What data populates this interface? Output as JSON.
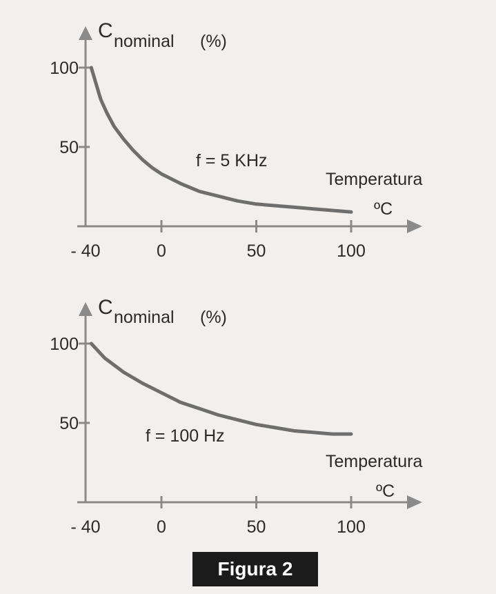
{
  "caption": "Figura 2",
  "colors": {
    "axis": "#8a8a8a",
    "curve": "#6e6e6e",
    "text": "#2a2a2a",
    "caption_bg": "#1b1b1b",
    "background": "#f1f0ee"
  },
  "chart_data": [
    {
      "type": "line",
      "title": "",
      "ylabel_main": "C",
      "ylabel_sub": "nominal",
      "ylabel_unit": "(%)",
      "xlabel_line1": "Temperatura",
      "xlabel_line2": "ºC",
      "annotation": "f = 5 KHz",
      "xlim": [
        -40,
        120
      ],
      "ylim": [
        0,
        115
      ],
      "xticks": [
        -40,
        0,
        50,
        100
      ],
      "xtick_labels": [
        "- 40",
        "0",
        "50",
        "100"
      ],
      "yticks": [
        100,
        50
      ],
      "ytick_labels": [
        "100",
        "50"
      ],
      "grid": false,
      "series": [
        {
          "x": [
            -37,
            -34,
            -32,
            -29,
            -25,
            -20,
            -15,
            -10,
            -5,
            0,
            10,
            20,
            30,
            40,
            50,
            60,
            70,
            80,
            90,
            100
          ],
          "y": [
            100,
            88,
            80,
            72,
            63,
            55,
            48,
            42,
            37,
            33,
            27,
            22,
            19,
            16,
            14,
            13,
            12,
            11,
            10,
            9
          ]
        }
      ]
    },
    {
      "type": "line",
      "title": "",
      "ylabel_main": "C",
      "ylabel_sub": "nominal",
      "ylabel_unit": "(%)",
      "xlabel_line1": "Temperatura",
      "xlabel_line2": "ºC",
      "annotation": "f = 100 Hz",
      "xlim": [
        -40,
        120
      ],
      "ylim": [
        0,
        115
      ],
      "xticks": [
        -40,
        0,
        50,
        100
      ],
      "xtick_labels": [
        "- 40",
        "0",
        "50",
        "100"
      ],
      "yticks": [
        100,
        50
      ],
      "ytick_labels": [
        "100",
        "50"
      ],
      "grid": false,
      "series": [
        {
          "x": [
            -37,
            -30,
            -20,
            -10,
            0,
            10,
            20,
            30,
            40,
            50,
            60,
            70,
            80,
            90,
            100
          ],
          "y": [
            100,
            91,
            82,
            75,
            69,
            63,
            59,
            55,
            52,
            49,
            47,
            45,
            44,
            43,
            43
          ]
        }
      ]
    }
  ]
}
